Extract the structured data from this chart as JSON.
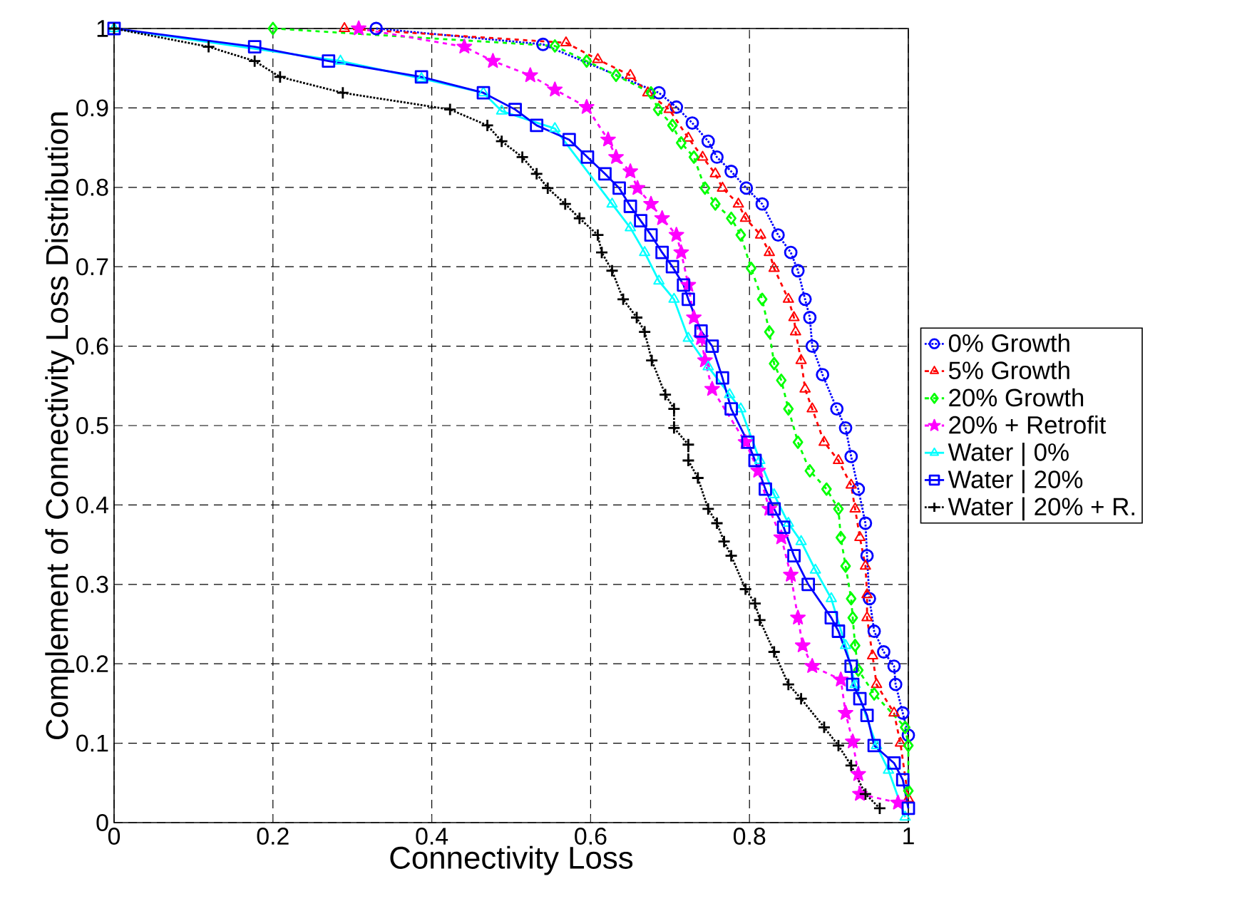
{
  "chart_data": {
    "type": "line",
    "xlabel": "Connectivity Loss",
    "ylabel": "Complement of Connectivity Loss Distribution",
    "xlim": [
      0,
      1
    ],
    "ylim": [
      0,
      1
    ],
    "xticks": [
      0,
      0.2,
      0.4,
      0.6,
      0.8,
      1
    ],
    "yticks": [
      0,
      0.1,
      0.2,
      0.3,
      0.4,
      0.5,
      0.6,
      0.7,
      0.8,
      0.9,
      1
    ],
    "grid": true,
    "legend": "right",
    "series": [
      {
        "name": "0% Growth",
        "color": "#0000ff",
        "marker": "circle",
        "line_style": "dotted",
        "x": [
          0.33,
          0.54,
          0.686,
          0.708,
          0.728,
          0.748,
          0.759,
          0.777,
          0.796,
          0.816,
          0.836,
          0.852,
          0.861,
          0.87,
          0.876,
          0.879,
          0.892,
          0.91,
          0.921,
          0.928,
          0.937,
          0.946,
          0.948,
          0.951,
          0.957,
          0.969,
          0.982,
          0.984,
          0.993,
          1.0
        ],
        "values": [
          1.0,
          0.98,
          0.919,
          0.901,
          0.881,
          0.858,
          0.838,
          0.82,
          0.799,
          0.779,
          0.74,
          0.718,
          0.695,
          0.659,
          0.636,
          0.6,
          0.564,
          0.521,
          0.497,
          0.461,
          0.42,
          0.377,
          0.336,
          0.282,
          0.241,
          0.215,
          0.197,
          0.174,
          0.138,
          0.11
        ]
      },
      {
        "name": "5% Growth",
        "color": "#ff0000",
        "marker": "triangle",
        "line_style": "dashed",
        "x": [
          0.29,
          0.569,
          0.609,
          0.65,
          0.672,
          0.699,
          0.723,
          0.741,
          0.757,
          0.766,
          0.786,
          0.795,
          0.814,
          0.825,
          0.831,
          0.849,
          0.856,
          0.858,
          0.865,
          0.87,
          0.879,
          0.894,
          0.912,
          0.928,
          0.933,
          0.939,
          0.946,
          0.948,
          0.948,
          0.955,
          0.96,
          0.982,
          0.99,
          1.0
        ],
        "values": [
          1.0,
          0.982,
          0.961,
          0.941,
          0.919,
          0.898,
          0.862,
          0.838,
          0.817,
          0.799,
          0.779,
          0.761,
          0.74,
          0.718,
          0.698,
          0.659,
          0.636,
          0.618,
          0.582,
          0.546,
          0.521,
          0.479,
          0.456,
          0.425,
          0.395,
          0.359,
          0.323,
          0.287,
          0.258,
          0.21,
          0.174,
          0.138,
          0.1,
          0.03
        ]
      },
      {
        "name": "20% Growth",
        "color": "#00ff00",
        "marker": "diamond",
        "line_style": "dashed",
        "x": [
          0.2,
          0.555,
          0.595,
          0.632,
          0.676,
          0.685,
          0.703,
          0.714,
          0.73,
          0.744,
          0.757,
          0.777,
          0.789,
          0.802,
          0.816,
          0.825,
          0.831,
          0.84,
          0.849,
          0.861,
          0.876,
          0.897,
          0.912,
          0.915,
          0.921,
          0.928,
          0.93,
          0.933,
          0.937,
          0.957,
          0.996,
          1.0,
          1.0
        ],
        "values": [
          1.0,
          0.978,
          0.959,
          0.941,
          0.919,
          0.898,
          0.878,
          0.856,
          0.838,
          0.799,
          0.779,
          0.761,
          0.74,
          0.698,
          0.659,
          0.618,
          0.578,
          0.557,
          0.521,
          0.479,
          0.443,
          0.42,
          0.395,
          0.359,
          0.323,
          0.282,
          0.258,
          0.223,
          0.192,
          0.162,
          0.12,
          0.097,
          0.04
        ]
      },
      {
        "name": "20% + Retrofit",
        "color": "#ff00ff",
        "marker": "star",
        "line_style": "dashed",
        "x": [
          0.308,
          0.441,
          0.477,
          0.524,
          0.555,
          0.595,
          0.622,
          0.632,
          0.65,
          0.659,
          0.676,
          0.69,
          0.708,
          0.714,
          0.723,
          0.73,
          0.739,
          0.744,
          0.753,
          0.795,
          0.811,
          0.825,
          0.84,
          0.852,
          0.861,
          0.867,
          0.879,
          0.915,
          0.921,
          0.93,
          0.937,
          0.939,
          0.987
        ],
        "values": [
          1.0,
          0.977,
          0.959,
          0.941,
          0.923,
          0.901,
          0.86,
          0.838,
          0.82,
          0.799,
          0.779,
          0.761,
          0.74,
          0.718,
          0.677,
          0.636,
          0.61,
          0.582,
          0.546,
          0.479,
          0.443,
          0.395,
          0.359,
          0.312,
          0.258,
          0.223,
          0.197,
          0.18,
          0.138,
          0.102,
          0.061,
          0.036,
          0.025
        ]
      },
      {
        "name": "Water | 0%",
        "color": "#00ffff",
        "marker": "triangle",
        "line_style": "solid",
        "x": [
          0,
          0.285,
          0.387,
          0.465,
          0.488,
          0.555,
          0.627,
          0.65,
          0.668,
          0.686,
          0.705,
          0.723,
          0.748,
          0.775,
          0.789,
          0.813,
          0.831,
          0.849,
          0.865,
          0.883,
          0.903,
          0.921,
          0.933,
          0.96,
          0.975,
          0.996
        ],
        "values": [
          1.0,
          0.959,
          0.937,
          0.919,
          0.896,
          0.874,
          0.779,
          0.749,
          0.718,
          0.682,
          0.659,
          0.61,
          0.574,
          0.539,
          0.521,
          0.456,
          0.413,
          0.377,
          0.354,
          0.318,
          0.282,
          0.223,
          0.174,
          0.097,
          0.066,
          0.007
        ]
      },
      {
        "name": "Water | 20%",
        "color": "#0000ff",
        "marker": "square",
        "line_style": "solid",
        "x": [
          0,
          0.177,
          0.27,
          0.387,
          0.465,
          0.505,
          0.532,
          0.573,
          0.596,
          0.618,
          0.636,
          0.65,
          0.663,
          0.676,
          0.69,
          0.703,
          0.717,
          0.723,
          0.739,
          0.753,
          0.766,
          0.777,
          0.798,
          0.807,
          0.82,
          0.831,
          0.843,
          0.856,
          0.874,
          0.903,
          0.912,
          0.928,
          0.93,
          0.939,
          0.948,
          0.957,
          0.982,
          0.993,
          1.0
        ],
        "values": [
          1.0,
          0.977,
          0.959,
          0.939,
          0.919,
          0.898,
          0.878,
          0.86,
          0.838,
          0.817,
          0.799,
          0.776,
          0.758,
          0.74,
          0.718,
          0.7,
          0.677,
          0.659,
          0.619,
          0.6,
          0.56,
          0.521,
          0.479,
          0.456,
          0.42,
          0.395,
          0.372,
          0.336,
          0.3,
          0.258,
          0.241,
          0.197,
          0.174,
          0.156,
          0.135,
          0.097,
          0.075,
          0.054,
          0.018
        ]
      },
      {
        "name": "Water | 20% + R.",
        "color": "#000000",
        "marker": "cross",
        "line_style": "dotted",
        "x": [
          0,
          0.119,
          0.177,
          0.209,
          0.288,
          0.423,
          0.47,
          0.488,
          0.514,
          0.532,
          0.546,
          0.568,
          0.586,
          0.609,
          0.614,
          0.627,
          0.641,
          0.658,
          0.668,
          0.677,
          0.694,
          0.705,
          0.705,
          0.723,
          0.723,
          0.735,
          0.748,
          0.759,
          0.768,
          0.777,
          0.795,
          0.807,
          0.813,
          0.831,
          0.849,
          0.865,
          0.894,
          0.912,
          0.928,
          0.946,
          0.964
        ],
        "values": [
          1.0,
          0.977,
          0.959,
          0.939,
          0.919,
          0.898,
          0.878,
          0.858,
          0.838,
          0.817,
          0.799,
          0.779,
          0.761,
          0.74,
          0.718,
          0.695,
          0.659,
          0.636,
          0.618,
          0.582,
          0.539,
          0.521,
          0.497,
          0.476,
          0.456,
          0.434,
          0.395,
          0.377,
          0.354,
          0.336,
          0.294,
          0.276,
          0.255,
          0.215,
          0.174,
          0.156,
          0.12,
          0.097,
          0.072,
          0.036,
          0.018
        ]
      }
    ]
  }
}
